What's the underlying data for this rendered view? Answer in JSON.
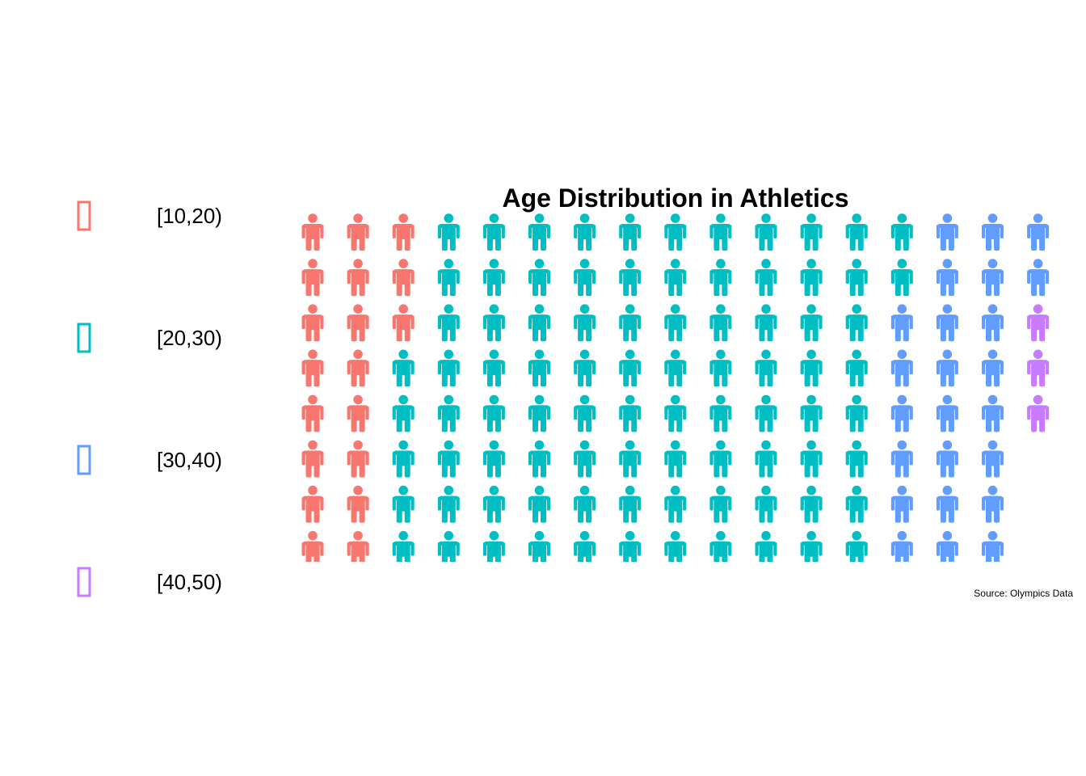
{
  "chart_data": {
    "type": "pictogram",
    "title": "Age Distribution in Athletics",
    "caption": "Source: Olympics Data",
    "rows": 8,
    "categories": [
      "[10,20)",
      "[20,30)",
      "[30,40)",
      "[40,50)"
    ],
    "values": [
      19,
      87,
      24,
      3
    ],
    "colors": [
      "#F8766D",
      "#00BFC4",
      "#619CFF",
      "#C77CFF"
    ],
    "icon": "male-person-icon",
    "legend_position": "left",
    "grid": false
  }
}
